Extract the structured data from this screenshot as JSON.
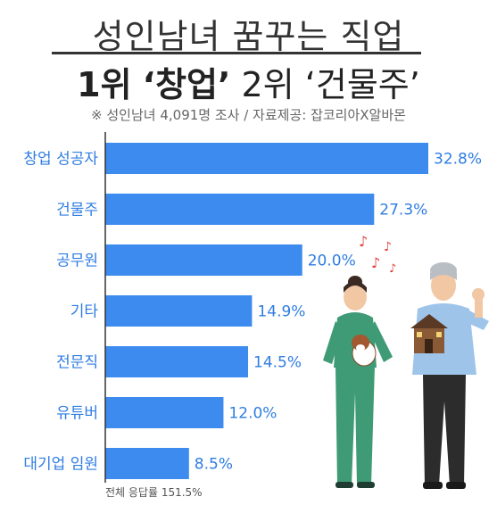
{
  "header": {
    "title_line1": "성인남녀 꿈꾸는 직업",
    "title_line2": {
      "rank1": "1위",
      "item1": "‘창업’",
      "rank2": "2위",
      "item2": "‘건물주’"
    },
    "subtitle": "※ 성인남녀 4,091명 조사 / 자료제공: 잡코리아X알바몬"
  },
  "footnote": "전체 응답률 151.5%",
  "colors": {
    "bar": "#3d8bef",
    "text": "#2f7de1",
    "axis": "#333333"
  },
  "chart_data": {
    "type": "bar",
    "orientation": "horizontal",
    "categories": [
      "창업 성공자",
      "건물주",
      "공무원",
      "기타",
      "전문직",
      "유튜버",
      "대기업 임원"
    ],
    "values": [
      32.8,
      27.3,
      20.0,
      14.9,
      14.5,
      12.0,
      8.5
    ],
    "value_labels": [
      "32.8%",
      "27.3%",
      "20.0%",
      "14.9%",
      "14.5%",
      "12.0%",
      "8.5%"
    ],
    "unit": "%",
    "title": "",
    "xlabel": "",
    "ylabel": "",
    "xlim": [
      0,
      32.8
    ],
    "grid": false
  }
}
